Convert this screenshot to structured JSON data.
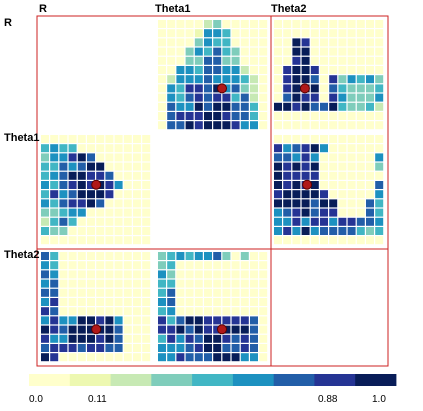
{
  "chart_data": {
    "type": "heatmap",
    "variables": [
      "R",
      "Theta1",
      "Theta2"
    ],
    "grid_cells_per_panel": 12,
    "colorbar": {
      "min": 0.0,
      "max": 1.0,
      "tick_labels": [
        "0.0",
        "0.11",
        "0.88",
        "1.0"
      ],
      "tick_values": [
        0.0,
        0.11,
        0.88,
        1.0
      ],
      "colors": [
        "#ffffcc",
        "#edf8b1",
        "#c7e9b4",
        "#7fcdbb",
        "#41b6c4",
        "#1d91c0",
        "#225ea8",
        "#253494",
        "#081d58"
      ]
    },
    "panels": [
      {
        "row": "R",
        "col": "Theta1",
        "shape": "hump",
        "peak": {
          "x": 0.55,
          "y": 0.75
        },
        "marker": {
          "x": 0.58,
          "y": 0.62
        }
      },
      {
        "row": "R",
        "col": "Theta2",
        "shape": "left-hump-right-band",
        "peak": {
          "x": 0.25,
          "y": 0.6
        },
        "marker": {
          "x": 0.28,
          "y": 0.62
        }
      },
      {
        "row": "Theta1",
        "col": "R",
        "shape": "left-wedge",
        "peak": {
          "x": 0.45,
          "y": 0.45
        },
        "marker": {
          "x": 0.5,
          "y": 0.45
        }
      },
      {
        "row": "Theta1",
        "col": "Theta2",
        "shape": "u-shape",
        "peak": {
          "x": 0.3,
          "y": 0.5
        },
        "marker": {
          "x": 0.3,
          "y": 0.45
        }
      },
      {
        "row": "Theta2",
        "col": "R",
        "shape": "left-bar-bottom-band",
        "peak": {
          "x": 0.5,
          "y": 0.72
        },
        "marker": {
          "x": 0.5,
          "y": 0.7
        }
      },
      {
        "row": "Theta2",
        "col": "Theta1",
        "shape": "c-shape",
        "peak": {
          "x": 0.55,
          "y": 0.72
        },
        "marker": {
          "x": 0.58,
          "y": 0.7
        }
      }
    ]
  }
}
